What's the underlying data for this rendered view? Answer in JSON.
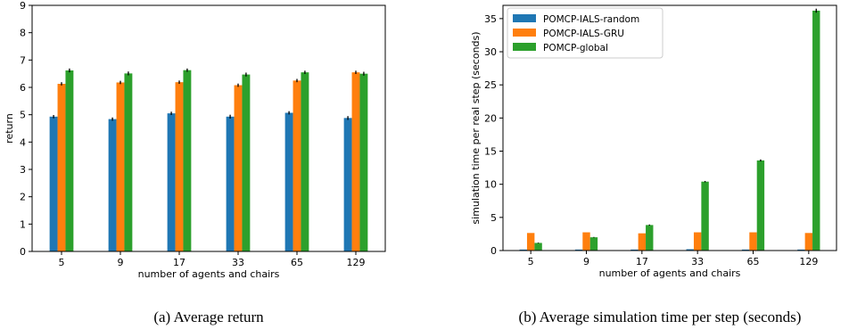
{
  "colors": {
    "random": "#1f77b4",
    "gru": "#ff7f0e",
    "global": "#2ca02c"
  },
  "chart_data": [
    {
      "type": "bar",
      "categories": [
        "5",
        "9",
        "17",
        "33",
        "65",
        "129"
      ],
      "xlabel": "number of agents and chairs",
      "ylabel": "return",
      "ylim": [
        0,
        9
      ],
      "yticks": [
        "0",
        "1",
        "2",
        "3",
        "4",
        "5",
        "6",
        "7",
        "8",
        "9"
      ],
      "grid": false,
      "series": [
        {
          "values": [
            4.93,
            4.84,
            5.05,
            4.93,
            5.07,
            4.88
          ],
          "errors": [
            0.06,
            0.06,
            0.06,
            0.07,
            0.06,
            0.07
          ]
        },
        {
          "values": [
            6.13,
            6.18,
            6.19,
            6.08,
            6.25,
            6.55
          ],
          "errors": [
            0.06,
            0.06,
            0.06,
            0.06,
            0.06,
            0.06
          ]
        },
        {
          "values": [
            6.62,
            6.51,
            6.63,
            6.47,
            6.55,
            6.5
          ],
          "errors": [
            0.07,
            0.07,
            0.06,
            0.07,
            0.06,
            0.07
          ]
        }
      ],
      "caption": "(a) Average return"
    },
    {
      "type": "bar",
      "categories": [
        "5",
        "9",
        "17",
        "33",
        "65",
        "129"
      ],
      "xlabel": "number of agents and chairs",
      "ylabel": "simulation time per real step (seconds)",
      "ylim": [
        0,
        37
      ],
      "yticks": [
        "0",
        "5",
        "10",
        "15",
        "20",
        "25",
        "30",
        "35"
      ],
      "grid": false,
      "legend_position": "top-left",
      "series": [
        {
          "name": "POMCP-IALS-random",
          "values": [
            0.15,
            0.15,
            0.15,
            0.2,
            0.15,
            0.15
          ],
          "errors": [
            0,
            0,
            0,
            0,
            0,
            0
          ]
        },
        {
          "name": "POMCP-IALS-GRU",
          "values": [
            2.65,
            2.75,
            2.6,
            2.75,
            2.75,
            2.65
          ],
          "errors": [
            0,
            0,
            0,
            0,
            0,
            0
          ]
        },
        {
          "name": "POMCP-global",
          "values": [
            1.15,
            2.0,
            3.85,
            10.4,
            13.6,
            36.2
          ],
          "errors": [
            0.05,
            0.05,
            0.08,
            0.1,
            0.15,
            0.3
          ]
        }
      ],
      "caption": "(b) Average simulation time per step (seconds)"
    }
  ]
}
